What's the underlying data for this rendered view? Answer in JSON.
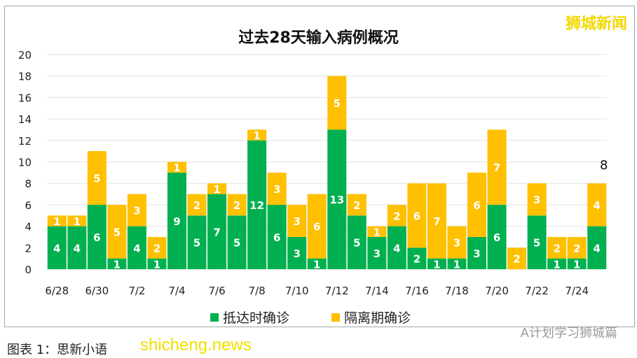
{
  "chart_data": {
    "type": "bar",
    "stacked": true,
    "title": "过去28天输入病例概况",
    "categories": [
      "6/28",
      "6/29",
      "6/30",
      "7/1",
      "7/2",
      "7/3",
      "7/4",
      "7/5",
      "7/6",
      "7/7",
      "7/8",
      "7/9",
      "7/10",
      "7/11",
      "7/12",
      "7/13",
      "7/14",
      "7/15",
      "7/16",
      "7/17",
      "7/18",
      "7/19",
      "7/20",
      "7/21",
      "7/22",
      "7/23",
      "7/24",
      "7/25"
    ],
    "tick_labels": [
      "6/28",
      "6/30",
      "7/2",
      "7/4",
      "7/6",
      "7/8",
      "7/10",
      "7/12",
      "7/14",
      "7/16",
      "7/18",
      "7/20",
      "7/22",
      "7/24"
    ],
    "series": [
      {
        "name": "抵达时确诊",
        "color": "#00b050",
        "values": [
          4,
          4,
          6,
          1,
          4,
          1,
          9,
          5,
          7,
          5,
          12,
          6,
          3,
          1,
          13,
          5,
          3,
          4,
          2,
          1,
          1,
          3,
          6,
          0,
          5,
          1,
          1,
          4
        ]
      },
      {
        "name": "隔离期确诊",
        "color": "#ffc000",
        "values": [
          1,
          1,
          5,
          5,
          3,
          2,
          1,
          2,
          1,
          2,
          1,
          3,
          3,
          6,
          5,
          2,
          1,
          2,
          6,
          7,
          3,
          6,
          7,
          2,
          3,
          2,
          2,
          4
        ]
      }
    ],
    "annotations": [
      {
        "category": "7/25",
        "text": "8"
      }
    ],
    "ylim": [
      0,
      20
    ],
    "yticks": [
      0,
      2,
      4,
      6,
      8,
      10,
      12,
      14,
      16,
      18,
      20
    ],
    "grid": true,
    "legend": "bottom"
  },
  "brand": "狮城新闻",
  "wechat": "A计划学习狮城篇",
  "site": "shicheng.news",
  "caption": "图表 1：思新小语"
}
